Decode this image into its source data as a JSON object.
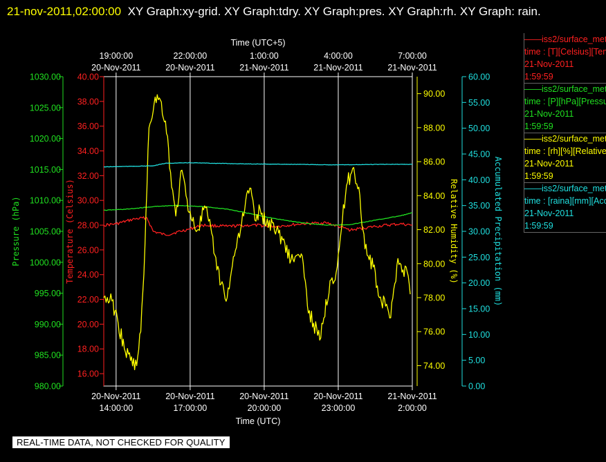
{
  "header": {
    "timestamp": "21-nov-2011,02:00:00",
    "graph_list": "XY Graph:xy-grid.  XY Graph:tdry.  XY Graph:pres.  XY Graph:rh.  XY Graph: rain."
  },
  "footer": {
    "qc_notice": "REAL-TIME DATA, NOT CHECKED FOR QUALITY"
  },
  "colors": {
    "temperature": "#ff2020",
    "pressure": "#20e020",
    "rh": "#ffff00",
    "rain": "#20e0e0",
    "grid": "#ffffff"
  },
  "chart_data": {
    "type": "line",
    "grid": true,
    "x_top_label": "Time (UTC+5)",
    "x_bottom_label": "Time (UTC)",
    "x_range": [
      "20-Nov-2011 13:30",
      "21-Nov-2011 02:00"
    ],
    "x_bottom_ticks": [
      {
        "time": "20-Nov-2011 14:00",
        "date": "20-Nov-2011",
        "clock": "14:00:00"
      },
      {
        "time": "20-Nov-2011 17:00",
        "date": "20-Nov-2011",
        "clock": "17:00:00"
      },
      {
        "time": "20-Nov-2011 20:00",
        "date": "20-Nov-2011",
        "clock": "20:00:00"
      },
      {
        "time": "20-Nov-2011 23:00",
        "date": "20-Nov-2011",
        "clock": "23:00:00"
      },
      {
        "time": "21-Nov-2011 02:00",
        "date": "21-Nov-2011",
        "clock": "2:00:00"
      }
    ],
    "x_top_ticks": [
      {
        "time": "20-Nov-2011 14:00",
        "clock": "19:00:00",
        "date": "20-Nov-2011"
      },
      {
        "time": "20-Nov-2011 17:00",
        "clock": "22:00:00",
        "date": "20-Nov-2011"
      },
      {
        "time": "20-Nov-2011 20:00",
        "clock": "1:00:00",
        "date": "21-Nov-2011"
      },
      {
        "time": "20-Nov-2011 23:00",
        "clock": "4:00:00",
        "date": "21-Nov-2011"
      },
      {
        "time": "21-Nov-2011 02:00",
        "clock": "7:00:00",
        "date": "21-Nov-2011"
      }
    ],
    "axes": [
      {
        "id": "pres",
        "label": "Pressure (hPa)",
        "range": [
          980,
          1030
        ],
        "ticks": [
          "980.00",
          "985.00",
          "990.00",
          "995.00",
          "1000.00",
          "1005.00",
          "1010.00",
          "1015.00",
          "1020.00",
          "1025.00",
          "1030.00"
        ],
        "color": "#20e020"
      },
      {
        "id": "tdry",
        "label": "Temperature (Celsius)",
        "range": [
          15,
          40
        ],
        "ticks": [
          "16.00",
          "18.00",
          "20.00",
          "22.00",
          "24.00",
          "26.00",
          "28.00",
          "30.00",
          "32.00",
          "34.00",
          "36.00",
          "38.00",
          "40.00"
        ],
        "color": "#ff2020"
      },
      {
        "id": "rh",
        "label": "Relative Humidity (%)",
        "range": [
          72.8,
          91
        ],
        "ticks": [
          "74.00",
          "76.00",
          "78.00",
          "80.00",
          "82.00",
          "84.00",
          "86.00",
          "88.00",
          "90.00"
        ],
        "color": "#ffff00"
      },
      {
        "id": "rain",
        "label": "Accumulated Precipitation (mm)",
        "range": [
          0,
          60
        ],
        "ticks": [
          "0.00",
          "5.00",
          "10.00",
          "15.00",
          "20.00",
          "25.00",
          "30.00",
          "35.00",
          "40.00",
          "45.00",
          "50.00",
          "55.00",
          "60.00"
        ],
        "color": "#20e0e0"
      }
    ],
    "series": [
      {
        "id": "tdry",
        "axis": "tdry",
        "color": "#ff2020",
        "wiggle": 0.12,
        "points": [
          [
            "20-Nov-2011 13:30",
            28.0
          ],
          [
            "20-Nov-2011 14:00",
            28.1
          ],
          [
            "20-Nov-2011 14:45",
            28.5
          ],
          [
            "20-Nov-2011 15:15",
            28.6
          ],
          [
            "20-Nov-2011 15:30",
            27.5
          ],
          [
            "20-Nov-2011 16:00",
            27.2
          ],
          [
            "20-Nov-2011 17:00",
            27.7
          ],
          [
            "20-Nov-2011 17:30",
            28.0
          ],
          [
            "20-Nov-2011 18:30",
            27.9
          ],
          [
            "20-Nov-2011 19:30",
            28.0
          ],
          [
            "20-Nov-2011 20:30",
            27.9
          ],
          [
            "20-Nov-2011 21:30",
            28.1
          ],
          [
            "20-Nov-2011 22:30",
            28.2
          ],
          [
            "20-Nov-2011 23:30",
            27.6
          ],
          [
            "21-Nov-2011 00:30",
            27.9
          ],
          [
            "21-Nov-2011 01:30",
            28.1
          ],
          [
            "21-Nov-2011 02:00",
            28.0
          ]
        ]
      },
      {
        "id": "pres",
        "axis": "pres",
        "color": "#20e020",
        "wiggle": 0.05,
        "points": [
          [
            "20-Nov-2011 13:30",
            1008.4
          ],
          [
            "20-Nov-2011 14:30",
            1008.6
          ],
          [
            "20-Nov-2011 15:30",
            1009.0
          ],
          [
            "20-Nov-2011 16:30",
            1009.2
          ],
          [
            "20-Nov-2011 17:30",
            1009.0
          ],
          [
            "20-Nov-2011 18:30",
            1008.6
          ],
          [
            "20-Nov-2011 19:30",
            1007.8
          ],
          [
            "20-Nov-2011 20:30",
            1007.0
          ],
          [
            "20-Nov-2011 21:30",
            1006.4
          ],
          [
            "20-Nov-2011 22:30",
            1006.0
          ],
          [
            "20-Nov-2011 23:30",
            1006.1
          ],
          [
            "21-Nov-2011 00:30",
            1006.8
          ],
          [
            "21-Nov-2011 01:30",
            1007.5
          ],
          [
            "21-Nov-2011 02:00",
            1008.0
          ]
        ]
      },
      {
        "id": "rh",
        "axis": "rh",
        "color": "#ffff00",
        "wiggle": 0.45,
        "points": [
          [
            "20-Nov-2011 13:30",
            78.0
          ],
          [
            "20-Nov-2011 13:50",
            77.8
          ],
          [
            "20-Nov-2011 14:05",
            76.5
          ],
          [
            "20-Nov-2011 14:20",
            75.0
          ],
          [
            "20-Nov-2011 14:35",
            74.3
          ],
          [
            "20-Nov-2011 14:50",
            74.0
          ],
          [
            "20-Nov-2011 15:00",
            76.0
          ],
          [
            "20-Nov-2011 15:10",
            81.0
          ],
          [
            "20-Nov-2011 15:20",
            88.0
          ],
          [
            "20-Nov-2011 15:35",
            89.8
          ],
          [
            "20-Nov-2011 15:50",
            89.5
          ],
          [
            "20-Nov-2011 16:05",
            87.5
          ],
          [
            "20-Nov-2011 16:15",
            84.5
          ],
          [
            "20-Nov-2011 16:25",
            82.8
          ],
          [
            "20-Nov-2011 16:40",
            85.5
          ],
          [
            "20-Nov-2011 16:50",
            84.0
          ],
          [
            "20-Nov-2011 17:05",
            82.5
          ],
          [
            "20-Nov-2011 17:20",
            82.0
          ],
          [
            "20-Nov-2011 17:35",
            83.4
          ],
          [
            "20-Nov-2011 17:45",
            82.5
          ],
          [
            "20-Nov-2011 18:00",
            80.5
          ],
          [
            "20-Nov-2011 18:15",
            78.8
          ],
          [
            "20-Nov-2011 18:30",
            78.0
          ],
          [
            "20-Nov-2011 18:40",
            79.5
          ],
          [
            "20-Nov-2011 18:55",
            81.5
          ],
          [
            "20-Nov-2011 19:10",
            82.8
          ],
          [
            "20-Nov-2011 19:20",
            84.3
          ],
          [
            "20-Nov-2011 19:30",
            84.0
          ],
          [
            "20-Nov-2011 19:40",
            82.5
          ],
          [
            "20-Nov-2011 19:50",
            83.2
          ],
          [
            "20-Nov-2011 20:05",
            82.3
          ],
          [
            "20-Nov-2011 20:20",
            82.4
          ],
          [
            "20-Nov-2011 20:35",
            81.8
          ],
          [
            "20-Nov-2011 20:50",
            81.2
          ],
          [
            "20-Nov-2011 21:05",
            80.2
          ],
          [
            "20-Nov-2011 21:20",
            80.5
          ],
          [
            "20-Nov-2011 21:35",
            80.0
          ],
          [
            "20-Nov-2011 21:45",
            77.5
          ],
          [
            "20-Nov-2011 22:00",
            76.5
          ],
          [
            "20-Nov-2011 22:15",
            75.5
          ],
          [
            "20-Nov-2011 22:25",
            76.8
          ],
          [
            "20-Nov-2011 22:40",
            79.0
          ],
          [
            "20-Nov-2011 22:55",
            79.5
          ],
          [
            "20-Nov-2011 23:10",
            82.5
          ],
          [
            "20-Nov-2011 23:20",
            84.6
          ],
          [
            "20-Nov-2011 23:35",
            85.6
          ],
          [
            "20-Nov-2011 23:50",
            84.5
          ],
          [
            "21-Nov-2011 00:00",
            82.0
          ],
          [
            "21-Nov-2011 00:10",
            80.5
          ],
          [
            "21-Nov-2011 00:25",
            79.8
          ],
          [
            "21-Nov-2011 00:40",
            78.0
          ],
          [
            "21-Nov-2011 00:55",
            77.5
          ],
          [
            "21-Nov-2011 01:05",
            76.8
          ],
          [
            "21-Nov-2011 01:15",
            78.5
          ],
          [
            "21-Nov-2011 01:25",
            80.3
          ],
          [
            "21-Nov-2011 01:35",
            79.5
          ],
          [
            "21-Nov-2011 01:45",
            79.8
          ],
          [
            "21-Nov-2011 01:55",
            78.2
          ]
        ]
      },
      {
        "id": "rain",
        "axis": "rain",
        "color": "#20e0e0",
        "wiggle": 0.04,
        "points": [
          [
            "20-Nov-2011 13:30",
            42.5
          ],
          [
            "20-Nov-2011 15:30",
            42.7
          ],
          [
            "20-Nov-2011 16:00",
            43.2
          ],
          [
            "20-Nov-2011 17:00",
            43.3
          ],
          [
            "20-Nov-2011 19:00",
            43.1
          ],
          [
            "20-Nov-2011 21:00",
            43.0
          ],
          [
            "20-Nov-2011 23:00",
            42.9
          ],
          [
            "21-Nov-2011 01:00",
            43.0
          ],
          [
            "21-Nov-2011 02:00",
            43.0
          ]
        ]
      }
    ],
    "legend": [
      {
        "color": "#ff2020",
        "line": "iss2/surface_met",
        "var": "time : [T][Celsius][Temperature]",
        "date": "21-Nov-2011",
        "time": "1:59:59"
      },
      {
        "color": "#20e020",
        "line": "iss2/surface_met",
        "var": "time : [P][hPa][Pressure]",
        "date": "21-Nov-2011",
        "time": "1:59:59"
      },
      {
        "color": "#ffff00",
        "line": "iss2/surface_met",
        "var": "time : [rh][%][Relative Humidity]",
        "date": "21-Nov-2011",
        "time": "1:59:59"
      },
      {
        "color": "#20e0e0",
        "line": "iss2/surface_met",
        "var": "time : [raina][mm][Accumulated Precipitation]",
        "date": "21-Nov-2011",
        "time": "1:59:59"
      }
    ]
  }
}
